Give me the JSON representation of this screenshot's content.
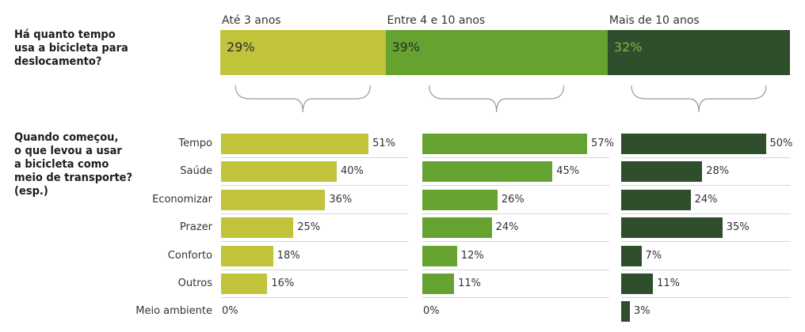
{
  "question1": [
    "Há quanto tempo",
    "usa a bicicleta para",
    "deslocamento?"
  ],
  "question2": [
    "Quando começou,",
    "o que levou a usar",
    "a bicicleta como",
    "meio de transporte?",
    "(esp.)"
  ],
  "colors": {
    "group1": "#c1c43b",
    "group2": "#66a22f",
    "group3": "#2f4e2b",
    "brace": "#999999"
  },
  "chart_data": [
    {
      "type": "bar",
      "orientation": "horizontal-stacked",
      "title": "Há quanto tempo usa a bicicleta para deslocamento?",
      "categories": [
        "Até 3 anos",
        "Entre 4 e 10 anos",
        "Mais de 10 anos"
      ],
      "values": [
        29,
        39,
        32
      ],
      "labels": [
        "29%",
        "39%",
        "32%"
      ]
    },
    {
      "type": "bar",
      "orientation": "horizontal",
      "title": "Quando começou, o que levou a usar a bicicleta como meio de transporte? (esp.)",
      "categories": [
        "Tempo",
        "Saúde",
        "Economizar",
        "Prazer",
        "Conforto",
        "Outros",
        "Meio ambiente"
      ],
      "series": [
        {
          "name": "Até 3 anos",
          "values": [
            51,
            40,
            36,
            25,
            18,
            16,
            0
          ]
        },
        {
          "name": "Entre 4 e 10 anos",
          "values": [
            57,
            45,
            26,
            24,
            12,
            11,
            0
          ]
        },
        {
          "name": "Mais de 10 anos",
          "values": [
            50,
            28,
            24,
            35,
            7,
            11,
            3
          ]
        }
      ],
      "unit": "%"
    }
  ]
}
